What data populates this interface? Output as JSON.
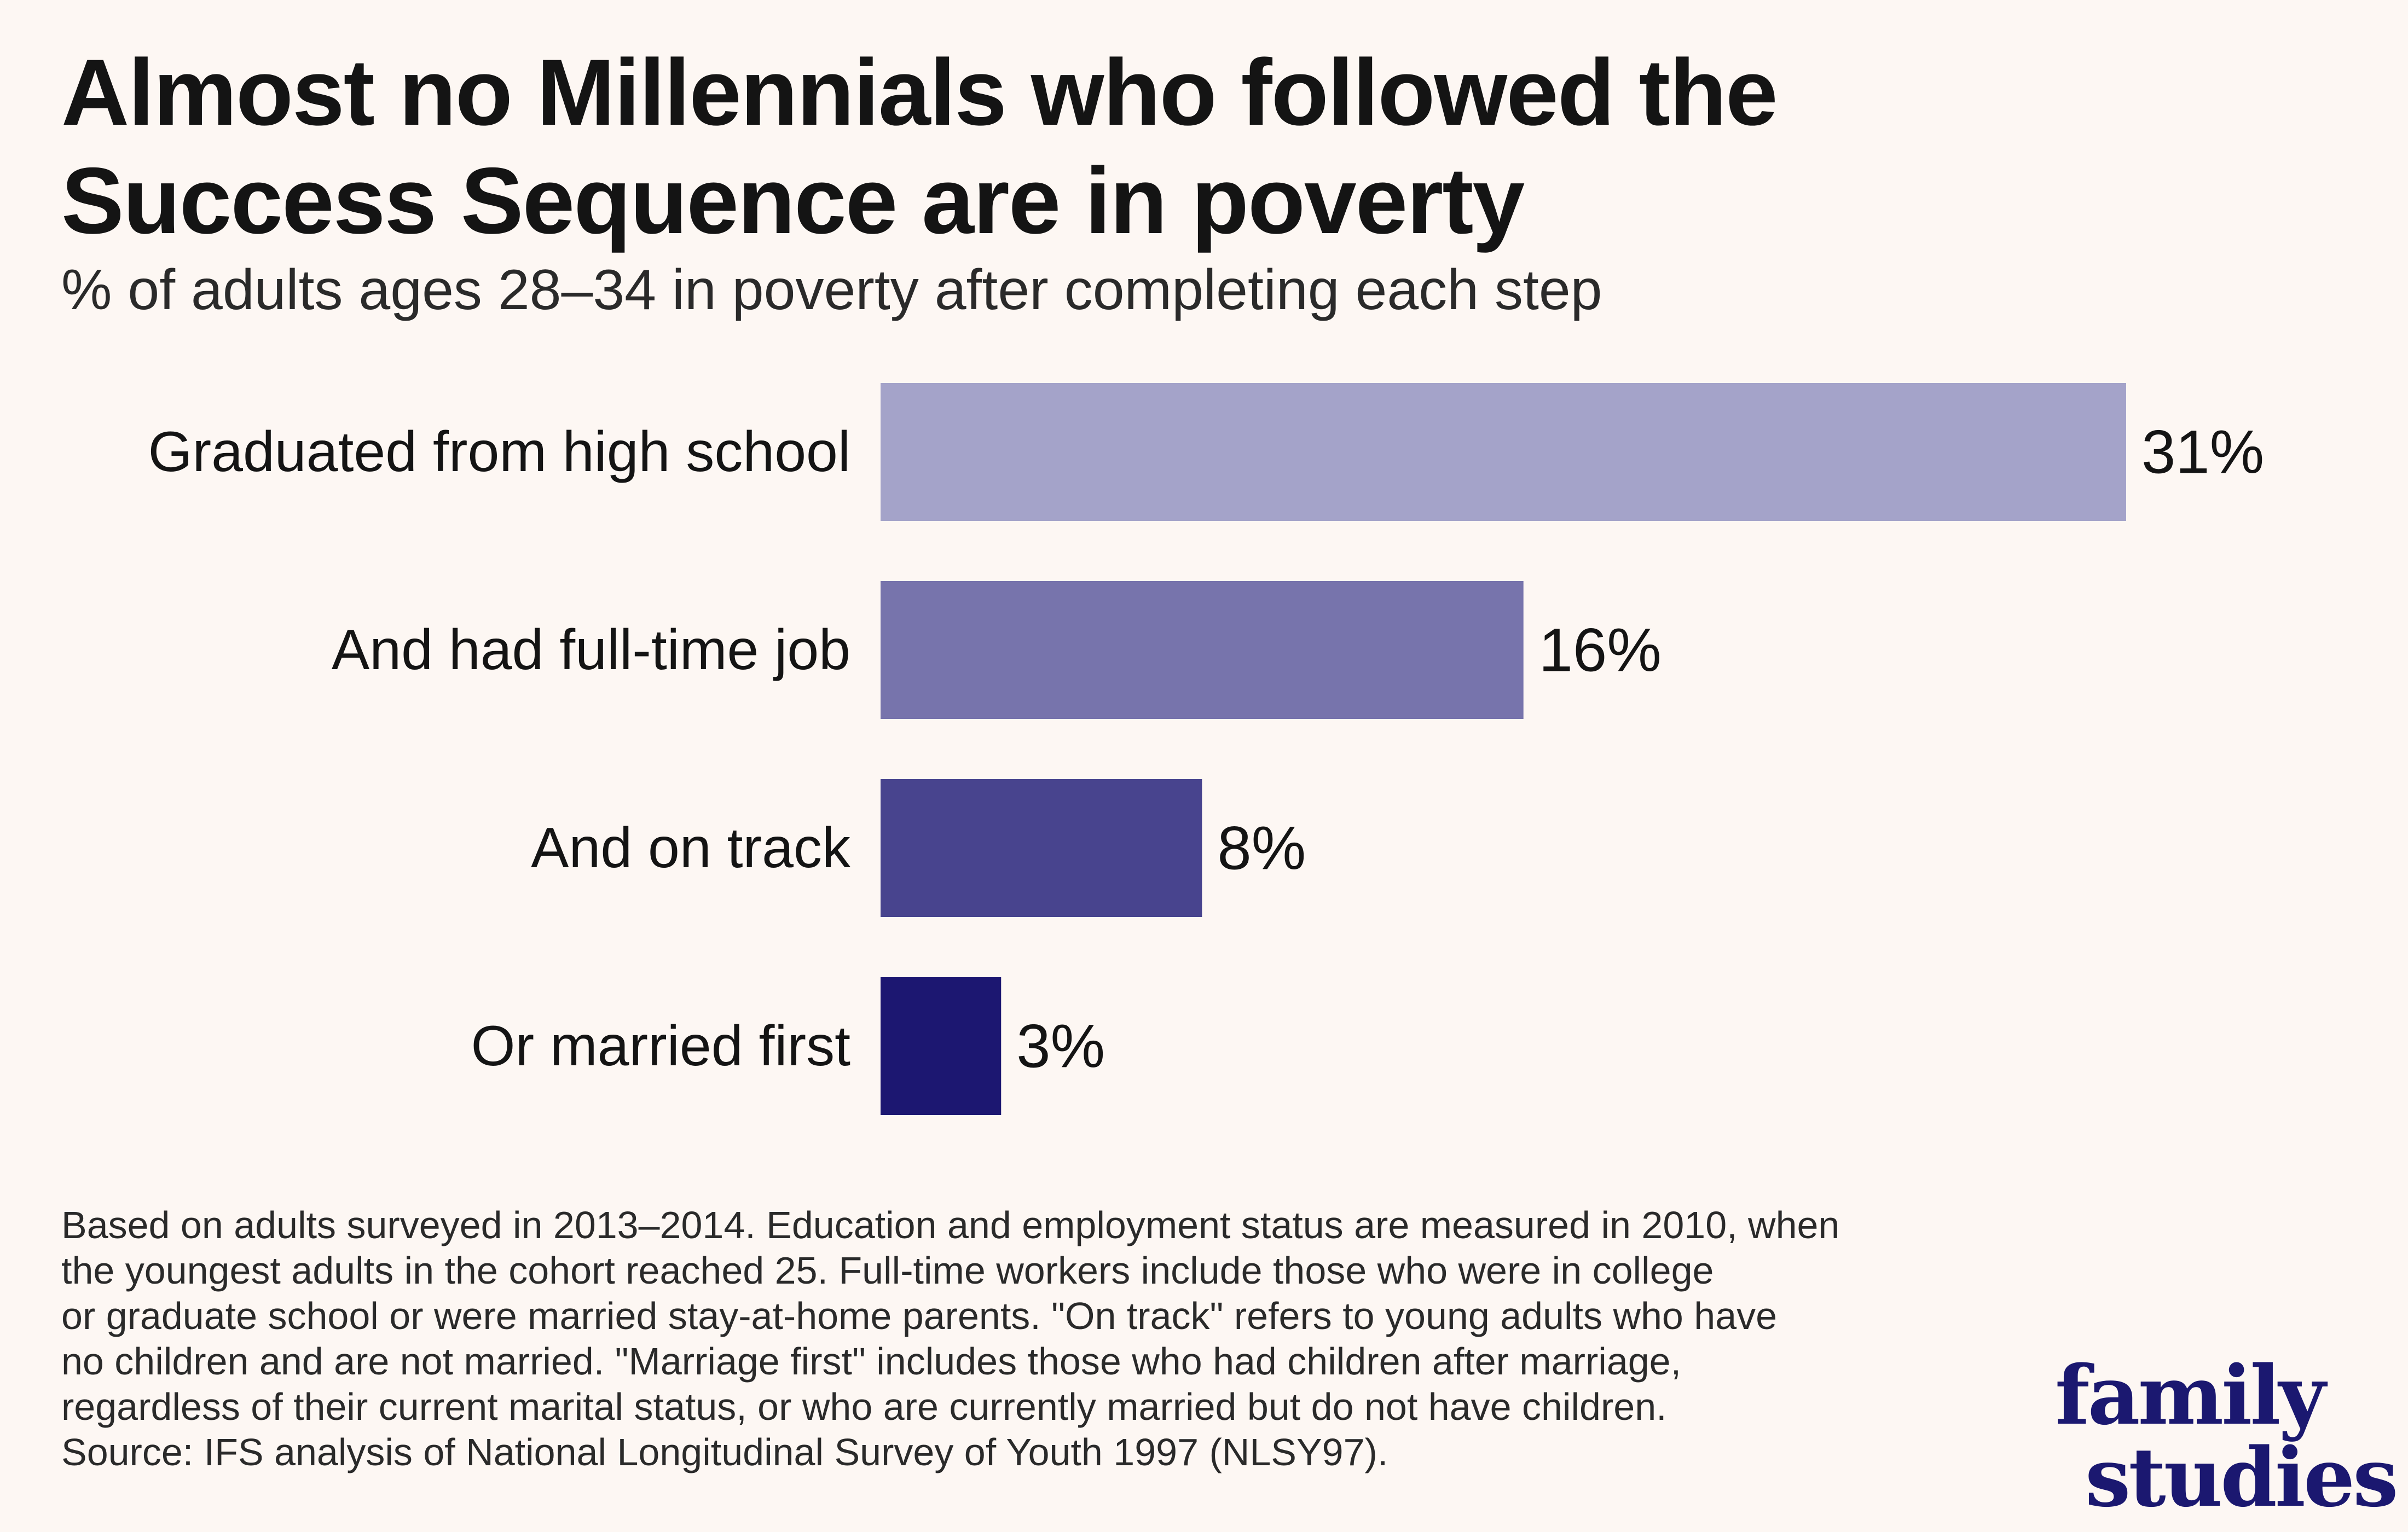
{
  "title": "Almost no Millennials who followed the Success Sequence are in poverty",
  "subtitle": "% of adults ages 28–34 in poverty after completing each step",
  "chart_data": {
    "type": "bar",
    "orientation": "horizontal",
    "title": "Almost no Millennials who followed the Success Sequence are in poverty",
    "subtitle": "% of adults ages 28–34 in poverty after completing each step",
    "xlabel": "",
    "ylabel": "",
    "xlim": [
      0,
      31
    ],
    "grid": false,
    "categories": [
      "Graduated from high school",
      "And had full-time job",
      "And on track",
      "Or married first"
    ],
    "values": [
      31,
      16,
      8,
      3
    ],
    "value_labels": [
      "31%",
      "16%",
      "8%",
      "3%"
    ],
    "colors": [
      "#a4a3c9",
      "#7774ac",
      "#48448e",
      "#1c1771"
    ]
  },
  "footnote": {
    "lines": [
      "Based on adults surveyed in 2013–2014. Education and employment status are measured in 2010, when",
      "the youngest adults in the cohort reached 25. Full-time workers include those who were in college",
      "or graduate school or were married stay-at-home parents. \"On track\" refers to young adults who have",
      "no children and are not married. \"Marriage first\" includes those who had children after marriage,",
      "regardless of their current marital status, or who are currently married but do not have children.",
      "Source: IFS analysis of National Longitudinal Survey of Youth 1997 (NLSY97)."
    ]
  },
  "logo": {
    "line1": "family",
    "line2": "studies",
    "color": "#1b1870"
  }
}
